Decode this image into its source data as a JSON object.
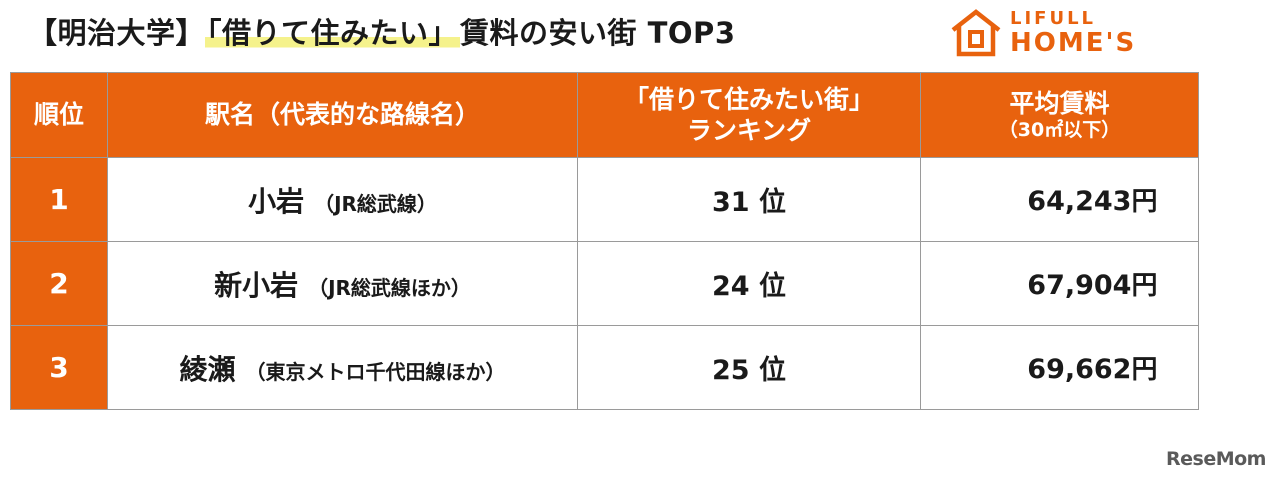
{
  "title": {
    "prefix": "【明治大学】",
    "highlight": "「借りて住みたい」",
    "suffix": "賃料の安い街 TOP3"
  },
  "logo": {
    "line1": "LIFULL",
    "line2": "HOME'S"
  },
  "table": {
    "headers": {
      "rank": "順位",
      "station": "駅名（代表的な路線名）",
      "ranking_line1": "「借りて住みたい街」",
      "ranking_line2": "ランキング",
      "rent_line1": "平均賃料",
      "rent_line2": "（30㎡以下）"
    },
    "rows": [
      {
        "rank": "1",
        "station": "小岩",
        "line": "（JR総武線）",
        "ranking": "31 位",
        "rent": "64,243",
        "unit": "円"
      },
      {
        "rank": "2",
        "station": "新小岩",
        "line": "（JR総武線ほか）",
        "ranking": "24 位",
        "rent": "67,904",
        "unit": "円"
      },
      {
        "rank": "3",
        "station": "綾瀬",
        "line": "（東京メトロ千代田線ほか）",
        "ranking": "25 位",
        "rent": "69,662",
        "unit": "円"
      }
    ]
  },
  "watermark": "ReseMom",
  "colors": {
    "accent": "#e8620e",
    "highlight": "#f5f28c"
  },
  "icons": {
    "logo": "house-icon"
  }
}
